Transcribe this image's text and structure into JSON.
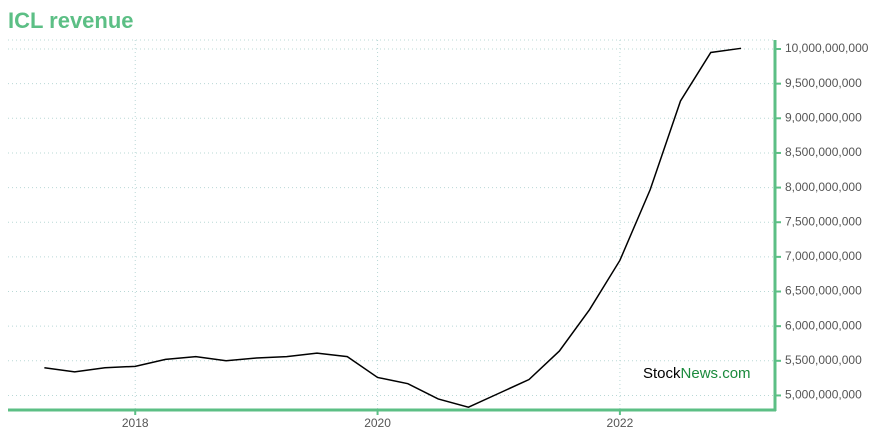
{
  "chart_data": {
    "type": "line",
    "title": "ICL revenue",
    "x": [
      2017.25,
      2017.5,
      2017.75,
      2018,
      2018.25,
      2018.5,
      2018.75,
      2019,
      2019.25,
      2019.5,
      2019.75,
      2020,
      2020.25,
      2020.5,
      2020.75,
      2021,
      2021.25,
      2021.5,
      2021.75,
      2022,
      2022.25,
      2022.5,
      2022.75,
      2023
    ],
    "series": [
      {
        "color": "#000000",
        "values": [
          5400000000,
          5340000000,
          5400000000,
          5420000000,
          5520000000,
          5560000000,
          5500000000,
          5540000000,
          5560000000,
          5610000000,
          5560000000,
          5260000000,
          5170000000,
          4950000000,
          4830000000,
          5030000000,
          5230000000,
          5640000000,
          6240000000,
          6950000000,
          7970000000,
          9250000000,
          9950000000,
          10010000000
        ]
      }
    ],
    "xlim": [
      2016.95,
      2023.28
    ],
    "xticks": [
      2018,
      2020,
      2022
    ],
    "ylim": [
      4790000000,
      10130000000
    ],
    "yticks": [
      {
        "value": 5000000000,
        "label": "5,000,000,000"
      },
      {
        "value": 5500000000,
        "label": "5,500,000,000"
      },
      {
        "value": 6000000000,
        "label": "6,000,000,000"
      },
      {
        "value": 6500000000,
        "label": "6,500,000,000"
      },
      {
        "value": 7000000000,
        "label": "7,000,000,000"
      },
      {
        "value": 7500000000,
        "label": "7,500,000,000"
      },
      {
        "value": 8000000000,
        "label": "8,000,000,000"
      },
      {
        "value": 8500000000,
        "label": "8,500,000,000"
      },
      {
        "value": 9000000000,
        "label": "9,000,000,000"
      },
      {
        "value": 9500000000,
        "label": "9,500,000,000"
      },
      {
        "value": 10000000000,
        "label": "10,000,000,000"
      }
    ],
    "grid": true,
    "axis_color": "#5cbf85",
    "watermark": {
      "brand": "Stock",
      "domain": "News.com"
    }
  }
}
